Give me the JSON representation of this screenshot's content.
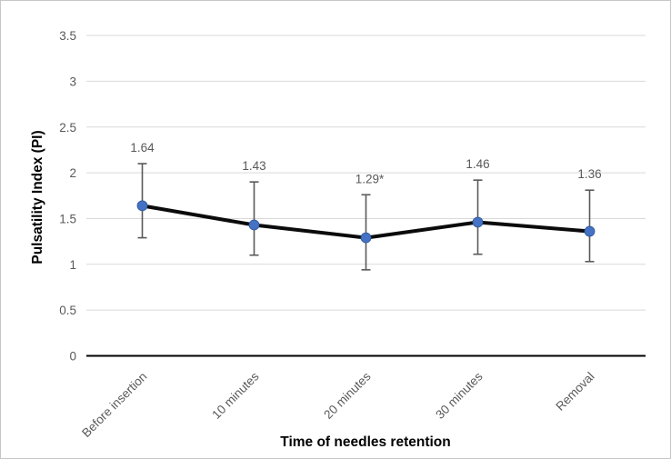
{
  "chart_data": {
    "type": "line",
    "title": "",
    "xlabel": "Time of needles retention",
    "ylabel": "Pulsatility Index (PI)",
    "categories": [
      "Before insertion",
      "10 minutes",
      "20 minutes",
      "30 minutes",
      "Removal"
    ],
    "series": [
      {
        "name": "Pulsatility Index",
        "values": [
          1.64,
          1.43,
          1.29,
          1.46,
          1.36
        ]
      }
    ],
    "data_labels": [
      "1.64",
      "1.43",
      "1.29*",
      "1.46",
      "1.36"
    ],
    "error_bars": {
      "upper": [
        2.1,
        1.9,
        1.76,
        1.92,
        1.81
      ],
      "lower": [
        1.29,
        1.1,
        0.94,
        1.11,
        1.03
      ]
    },
    "ylim": [
      0,
      3.5
    ],
    "ytick_step": 0.5,
    "yticks": [
      "0",
      "0.5",
      "1",
      "1.5",
      "2",
      "2.5",
      "3",
      "3.5"
    ],
    "grid": true,
    "legend": "none",
    "annotation_note": "* marks the 20 minutes value",
    "colors": {
      "line": "#0b0b0b",
      "marker": "#4472C4",
      "marker_edge": "#2f5597",
      "error": "#595959",
      "grid": "#d9d9d9",
      "axis": "#000000",
      "tick_label": "#595959",
      "category_label": "#595959",
      "data_label": "#595959",
      "axis_title": "#404040",
      "background": "#ffffff",
      "border": "#c6c6c6"
    }
  }
}
